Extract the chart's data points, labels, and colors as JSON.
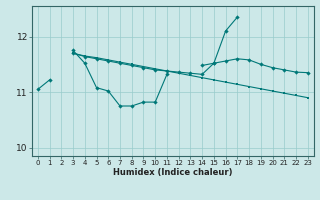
{
  "xlabel": "Humidex (Indice chaleur)",
  "bg_color": "#cce8e8",
  "line_color": "#007878",
  "grid_color": "#99cccc",
  "x": [
    0,
    1,
    2,
    3,
    4,
    5,
    6,
    7,
    8,
    9,
    10,
    11,
    12,
    13,
    14,
    15,
    16,
    17,
    18,
    19,
    20,
    21,
    22,
    23
  ],
  "series1": [
    11.05,
    11.22,
    null,
    11.75,
    11.52,
    11.08,
    11.02,
    10.75,
    10.75,
    10.82,
    10.82,
    11.32,
    null,
    null,
    11.48,
    11.52,
    12.1,
    12.35,
    null,
    null,
    null,
    null,
    null,
    null
  ],
  "series2": [
    null,
    null,
    null,
    11.7,
    11.65,
    11.62,
    11.58,
    11.54,
    11.5,
    11.46,
    11.42,
    11.38,
    11.34,
    11.3,
    11.26,
    11.22,
    11.18,
    11.14,
    11.1,
    11.06,
    11.02,
    10.98,
    10.94,
    10.9
  ],
  "series3": [
    null,
    null,
    null,
    11.7,
    11.64,
    11.6,
    11.56,
    11.52,
    11.48,
    11.44,
    11.4,
    11.38,
    11.36,
    11.34,
    11.32,
    11.52,
    11.56,
    11.6,
    11.58,
    11.5,
    11.44,
    11.4,
    11.36,
    11.35
  ],
  "ylim": [
    9.85,
    12.55
  ],
  "yticks": [
    10,
    11,
    12
  ],
  "xticks": [
    0,
    1,
    2,
    3,
    4,
    5,
    6,
    7,
    8,
    9,
    10,
    11,
    12,
    13,
    14,
    15,
    16,
    17,
    18,
    19,
    20,
    21,
    22,
    23
  ]
}
